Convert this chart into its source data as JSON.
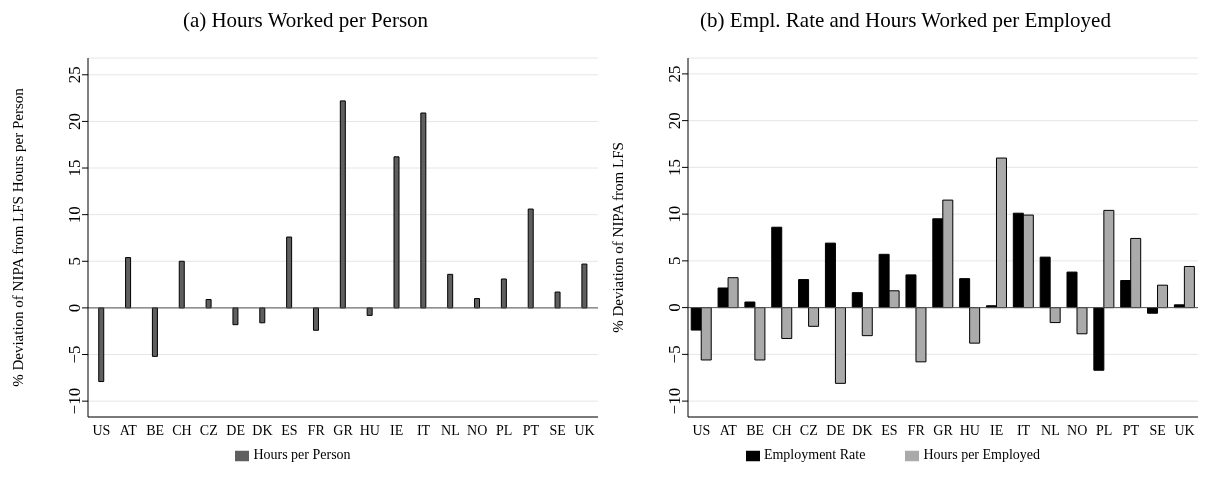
{
  "chart_data": [
    {
      "type": "bar",
      "title": "(a) Hours Worked per Person",
      "ylabel": "% Deviation of NIPA from LFS Hours per Person",
      "categories": [
        "US",
        "AT",
        "BE",
        "CH",
        "CZ",
        "DE",
        "DK",
        "ES",
        "FR",
        "GR",
        "HU",
        "IE",
        "IT",
        "NL",
        "NO",
        "PL",
        "PT",
        "SE",
        "UK"
      ],
      "series": [
        {
          "name": "Hours per Person",
          "color": "#5f5f5f",
          "values": [
            -7.9,
            5.4,
            -5.2,
            5.0,
            0.9,
            -1.8,
            -1.6,
            7.6,
            -2.4,
            22.2,
            -0.8,
            16.2,
            20.9,
            3.6,
            1.0,
            3.1,
            10.6,
            1.7,
            4.7
          ]
        }
      ],
      "ylim": [
        -11.7,
        26.8
      ],
      "yticks": [
        -10,
        -5,
        0,
        5,
        10,
        15,
        20,
        25
      ],
      "grid": "y",
      "legend": "bottom"
    },
    {
      "type": "bar",
      "title": "(b) Empl. Rate and Hours Worked per Employed",
      "ylabel": "% Deviation of NIPA from LFS",
      "categories": [
        "US",
        "AT",
        "BE",
        "CH",
        "CZ",
        "DE",
        "DK",
        "ES",
        "FR",
        "GR",
        "HU",
        "IE",
        "IT",
        "NL",
        "NO",
        "PL",
        "PT",
        "SE",
        "UK"
      ],
      "series": [
        {
          "name": "Employment Rate",
          "color": "#000000",
          "values": [
            -2.4,
            2.1,
            0.6,
            8.6,
            3.0,
            6.9,
            1.6,
            5.7,
            3.5,
            9.5,
            3.1,
            0.2,
            10.1,
            5.4,
            3.8,
            -6.7,
            2.9,
            -0.6,
            0.3
          ]
        },
        {
          "name": "Hours per Employed",
          "color": "#aaaaaa",
          "values": [
            -5.6,
            3.2,
            -5.6,
            -3.3,
            -2.0,
            -8.1,
            -3.0,
            1.8,
            -5.8,
            11.5,
            -3.8,
            16.0,
            9.9,
            -1.6,
            -2.8,
            10.4,
            7.4,
            2.4,
            4.4
          ]
        }
      ],
      "ylim": [
        -11.7,
        26.7
      ],
      "yticks": [
        -10,
        -5,
        0,
        5,
        10,
        15,
        20,
        25
      ],
      "grid": "y",
      "legend": "bottom"
    }
  ]
}
